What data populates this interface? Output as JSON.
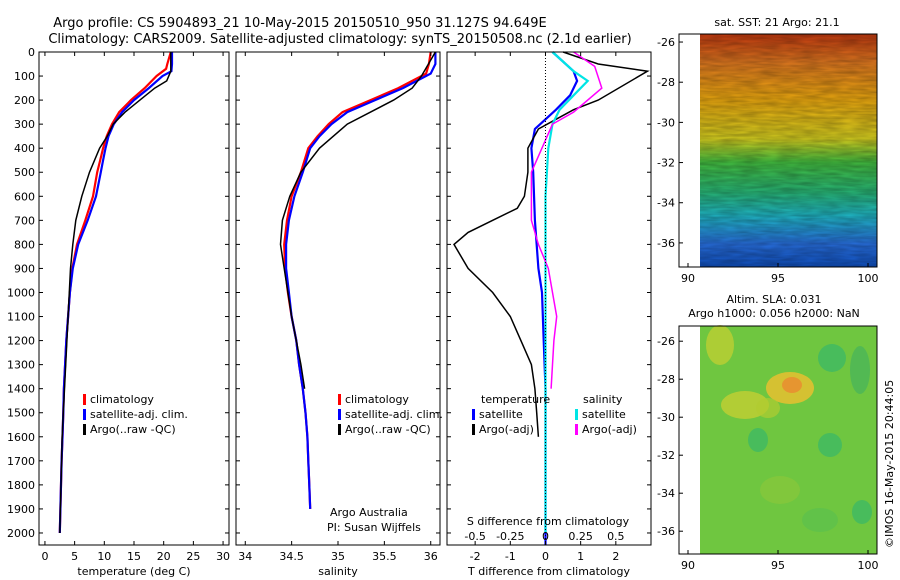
{
  "header": {
    "title_line1": "Argo profile: CS 5904893_21 10-May-2015 20150510_950 31.127S 94.649E",
    "title_line2": "Climatology: CARS2009. Satellite-adjusted climatology: synTS_20150508.nc (2.1d earlier)"
  },
  "colors": {
    "climatology": "#ff0000",
    "satellite": "#0000ff",
    "argo": "#000000",
    "satellite_s": "#00e5e5",
    "argo_s": "#ff00ff"
  },
  "chart_data": [
    {
      "type": "line",
      "name": "temperature-profile",
      "xlabel": "temperature (deg C)",
      "ylabel": "",
      "xlim": [
        -1,
        31
      ],
      "ylim": [
        2050,
        0
      ],
      "xticks": [
        "0",
        "5",
        "10",
        "15",
        "20",
        "25",
        "30"
      ],
      "yticks": [
        "0",
        "100",
        "200",
        "300",
        "400",
        "500",
        "600",
        "700",
        "800",
        "900",
        "1000",
        "1100",
        "1200",
        "1300",
        "1400",
        "1500",
        "1600",
        "1700",
        "1800",
        "1900",
        "2000"
      ],
      "legend": [
        "climatology",
        "satellite-adj. clim.",
        "Argo(..raw -QC)"
      ],
      "series": [
        {
          "name": "climatology",
          "x": [
            21.2,
            20.6,
            20.4,
            18.8,
            16.8,
            14.5,
            12.5,
            11.3,
            10.4,
            9.8,
            9.3,
            8.8,
            8.1,
            6.8,
            5.4,
            4.6,
            4.2,
            3.9,
            3.6,
            3.4,
            3.2,
            3.1,
            2.95,
            2.8,
            2.7,
            2.6,
            2.5
          ],
          "y": [
            0,
            50,
            70,
            100,
            150,
            200,
            250,
            300,
            350,
            400,
            450,
            500,
            600,
            700,
            800,
            900,
            1000,
            1100,
            1200,
            1300,
            1400,
            1500,
            1600,
            1700,
            1800,
            1900,
            2000
          ]
        },
        {
          "name": "satellite-adj. clim.",
          "x": [
            21.4,
            21.4,
            21.3,
            19.8,
            17.5,
            15,
            13,
            11.6,
            10.7,
            10.2,
            9.8,
            9.4,
            8.6,
            7.2,
            5.6,
            4.7,
            4.2,
            3.9,
            3.6,
            3.4,
            3.2,
            3.1,
            2.95,
            2.8,
            2.7,
            2.6,
            2.5
          ],
          "y": [
            0,
            50,
            80,
            100,
            150,
            200,
            250,
            300,
            350,
            400,
            450,
            500,
            600,
            700,
            800,
            900,
            1000,
            1100,
            1200,
            1300,
            1400,
            1500,
            1600,
            1700,
            1800,
            1900,
            2000
          ]
        },
        {
          "name": "Argo(..raw -QC)",
          "x": [
            21.2,
            21.2,
            20.5,
            18.5,
            16,
            13.5,
            11.5,
            10.5,
            9.2,
            7.5,
            6.2,
            5.2,
            4.7,
            4.3,
            4.1,
            3.9,
            3.7,
            3.5,
            3.3,
            3.1,
            2.9,
            2.8,
            2.7,
            2.6,
            2.5
          ],
          "y": [
            0,
            80,
            120,
            150,
            200,
            250,
            300,
            350,
            400,
            500,
            600,
            700,
            800,
            900,
            1000,
            1100,
            1200,
            1300,
            1400,
            1500,
            1600,
            1700,
            1800,
            1900,
            2000
          ]
        }
      ]
    },
    {
      "type": "line",
      "name": "salinity-profile",
      "xlabel": "salinity",
      "ylabel": "",
      "xlim": [
        33.9,
        36.1
      ],
      "ylim": [
        2050,
        0
      ],
      "xticks": [
        "34",
        "34.5",
        "35",
        "35.5",
        "36"
      ],
      "legend": [
        "climatology",
        "satellite-adj. clim.",
        "Argo(..raw -QC)"
      ],
      "annotation": [
        "Argo Australia",
        "PI: Susan Wijffels"
      ],
      "series": [
        {
          "name": "climatology",
          "x": [
            36.0,
            35.98,
            35.95,
            35.65,
            35.35,
            35.05,
            34.9,
            34.78,
            34.68,
            34.6,
            34.5,
            34.45,
            34.42,
            34.43,
            34.46,
            34.5,
            34.55,
            34.58,
            34.62,
            34.65,
            34.67,
            34.68,
            34.69,
            34.7
          ],
          "y": [
            0,
            50,
            90,
            150,
            200,
            250,
            300,
            350,
            400,
            500,
            600,
            700,
            800,
            900,
            1000,
            1100,
            1200,
            1300,
            1400,
            1500,
            1600,
            1700,
            1800,
            1900
          ]
        },
        {
          "name": "satellite-adj. clim.",
          "x": [
            36.05,
            36.05,
            36.0,
            35.7,
            35.4,
            35.1,
            34.93,
            34.8,
            34.7,
            34.62,
            34.53,
            34.47,
            34.44,
            34.44,
            34.47,
            34.5,
            34.55,
            34.58,
            34.62,
            34.65,
            34.67,
            34.68,
            34.69,
            34.7
          ],
          "y": [
            0,
            50,
            90,
            150,
            200,
            250,
            300,
            350,
            400,
            500,
            600,
            700,
            800,
            900,
            1000,
            1100,
            1200,
            1300,
            1400,
            1500,
            1600,
            1700,
            1800,
            1900
          ]
        },
        {
          "name": "Argo(..raw -QC)",
          "x": [
            36.05,
            35.9,
            35.8,
            35.6,
            35.1,
            34.8,
            34.6,
            34.48,
            34.4,
            34.38,
            34.42,
            34.46,
            34.5,
            34.55,
            34.6,
            34.64
          ],
          "y": [
            0,
            100,
            150,
            200,
            300,
            400,
            500,
            600,
            700,
            800,
            900,
            1000,
            1100,
            1200,
            1300,
            1400
          ]
        }
      ]
    },
    {
      "type": "line",
      "name": "difference-profile",
      "xlabel": "T difference from climatology",
      "xlabel_top": "S difference from climatology",
      "xlim": [
        -2.8,
        3
      ],
      "ylim": [
        2050,
        0
      ],
      "xticks": [
        "-2",
        "-1",
        "0",
        "1",
        "2"
      ],
      "xticks_top": [
        "-0.5",
        "-0.25",
        "0",
        "0.25",
        "0.5"
      ],
      "legend": [
        "temperature",
        "satellite",
        "Argo(-adj)",
        "salinity",
        "satellite",
        "Argo(-adj)"
      ],
      "series": [
        {
          "name": "temperature satellite",
          "x": [
            0.2,
            0.8,
            0.9,
            0.7,
            0.3,
            0,
            -0.3,
            -0.4,
            -0.35,
            -0.3,
            -0.2,
            -0.1,
            -0.05,
            0,
            0,
            0,
            0,
            0
          ],
          "y": [
            0,
            80,
            120,
            180,
            240,
            280,
            320,
            400,
            500,
            700,
            900,
            1000,
            1200,
            1400,
            1600,
            1800,
            2000,
            2100
          ]
        },
        {
          "name": "temperature Argo(-adj)",
          "x": [
            0.5,
            1.5,
            2.9,
            1.5,
            0.8,
            0.3,
            -0.2,
            -0.5,
            -0.5,
            -0.6,
            -0.8,
            -1.5,
            -2.2,
            -2.6,
            -2.2,
            -1.5,
            -1,
            -0.7,
            -0.4,
            -0.3,
            -0.25,
            -0.2
          ],
          "y": [
            0,
            50,
            80,
            200,
            240,
            280,
            320,
            400,
            500,
            600,
            650,
            700,
            750,
            800,
            900,
            1000,
            1100,
            1200,
            1300,
            1400,
            1500,
            1600
          ]
        },
        {
          "name": "salinity satellite",
          "x": [
            0.05,
            0.2,
            0.3,
            0.2,
            0.1,
            0.05,
            0.02,
            0,
            0,
            0,
            0,
            0,
            0,
            0
          ],
          "y": [
            0,
            80,
            120,
            180,
            240,
            300,
            400,
            600,
            800,
            1000,
            1200,
            1400,
            1700,
            2000
          ]
        },
        {
          "name": "salinity Argo(-adj)",
          "x": [
            0.2,
            0.35,
            0.4,
            0.2,
            0.05,
            -0.1,
            -0.1,
            -0.05,
            0.02,
            0.05,
            0.08,
            0.06,
            0.05,
            0.04
          ],
          "y": [
            0,
            60,
            150,
            250,
            300,
            500,
            700,
            800,
            900,
            1000,
            1100,
            1200,
            1300,
            1400
          ]
        }
      ]
    },
    {
      "type": "heatmap",
      "name": "sst-map",
      "title": "sat. SST: 21 Argo: 21.1",
      "xlim": [
        89.5,
        100.5
      ],
      "ylim": [
        -37.2,
        -25.6
      ],
      "xticks": [
        "90",
        "95",
        "100"
      ],
      "yticks": [
        "-26",
        "-28",
        "-30",
        "-32",
        "-34",
        "-36"
      ]
    },
    {
      "type": "heatmap",
      "name": "sla-map",
      "title_line1": "Altim. SLA: 0.031",
      "title_line2": "Argo h1000: 0.056 h2000: NaN",
      "xlim": [
        89.5,
        100.5
      ],
      "ylim": [
        -37.2,
        -25.2
      ],
      "xticks": [
        "90",
        "95",
        "100"
      ],
      "yticks": [
        "-26",
        "-28",
        "-30",
        "-32",
        "-34",
        "-36"
      ]
    }
  ],
  "footer": {
    "imos_stamp": "©IMOS 16-May-2015 20:44:05"
  }
}
